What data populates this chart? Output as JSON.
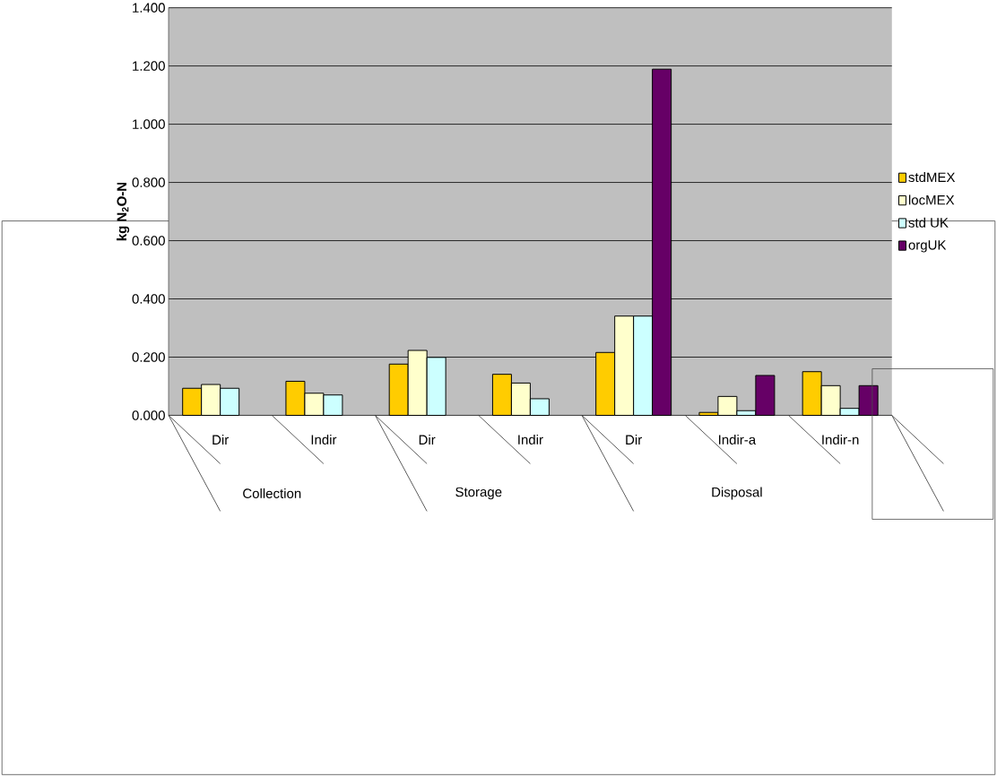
{
  "chart_data": {
    "type": "bar",
    "ylabel": "kg N$_{2}$O-N",
    "categories": [
      "Dir",
      "Indir",
      "Dir",
      "Indir",
      "Dir",
      "Indir-a",
      "Indir-n"
    ],
    "annotations": [
      "Collection",
      "Storage",
      "Disposal"
    ],
    "series": [
      {
        "name": "stdMEX",
        "color": "#ffcc00",
        "values": [
          0.093,
          0.117,
          0.176,
          0.141,
          0.216,
          0.01,
          0.15
        ]
      },
      {
        "name": "locMEX",
        "color": "#ffffcc",
        "values": [
          0.106,
          0.076,
          0.223,
          0.111,
          0.341,
          0.065,
          0.102
        ]
      },
      {
        "name": "std UK",
        "color": "#ccffff",
        "values": [
          0.093,
          0.07,
          0.199,
          0.057,
          0.341,
          0.016,
          0.024
        ]
      },
      {
        "name": "orgUK",
        "color": "#660066",
        "values": [
          null,
          null,
          null,
          null,
          1.189,
          0.137,
          0.102
        ]
      }
    ],
    "ylim": [
      0,
      1.4
    ],
    "yticks": [
      {
        "value": 0,
        "label": "0.000"
      },
      {
        "value": 0.2,
        "label": "0.200"
      },
      {
        "value": 0.4,
        "label": "0.400"
      },
      {
        "value": 0.6,
        "label": "0.600"
      },
      {
        "value": 0.8,
        "label": "0.800"
      },
      {
        "value": 1.0,
        "label": "1.000"
      },
      {
        "value": 1.2,
        "label": "1.200"
      },
      {
        "value": 1.4,
        "label": "1.400"
      }
    ],
    "grid": "y",
    "legend": "right"
  }
}
